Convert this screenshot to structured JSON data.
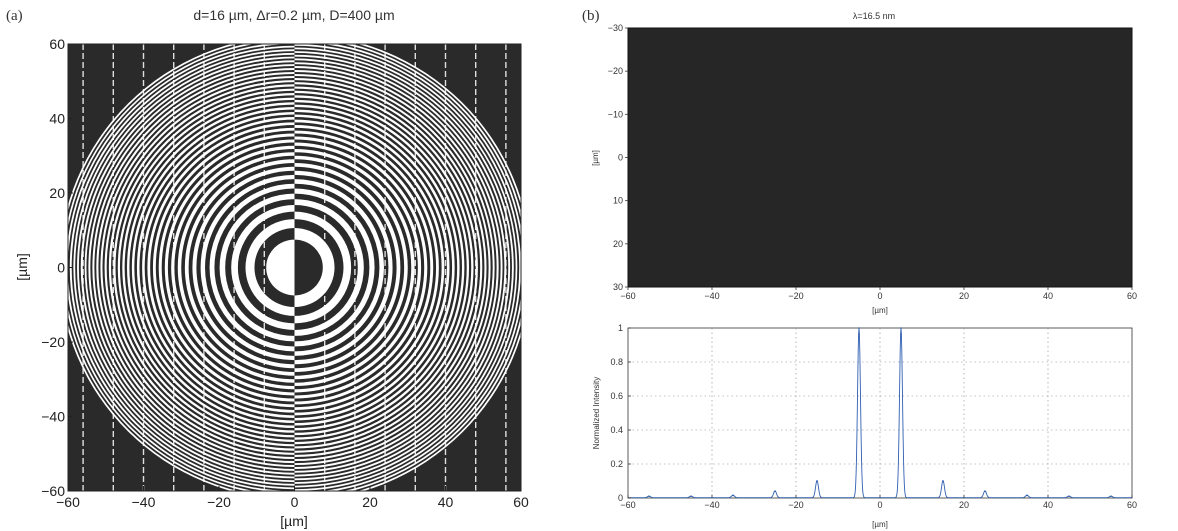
{
  "panel_a": {
    "letter": "(a)",
    "title": "d=16 µm, Δr=0.2 µm, D=400 µm",
    "xlabel": "[µm]",
    "ylabel": "[µm]"
  },
  "panel_b": {
    "letter": "(b)"
  },
  "chart_data": [
    {
      "type": "heatmap",
      "description_key": "panel-a-zone-plate-pattern",
      "title": "d=16 µm, Δr=0.2 µm, D=400 µm",
      "xlabel": "[µm]",
      "ylabel": "[µm]",
      "xlim": [
        -60,
        60
      ],
      "ylim": [
        60,
        -60
      ],
      "x_ticks": [
        -60,
        -40,
        -20,
        0,
        20,
        40,
        60
      ],
      "y_ticks": [
        -60,
        -40,
        -20,
        0,
        20,
        40,
        60
      ],
      "y_inverted": true,
      "grid": false,
      "colors": {
        "dark": "#2a2a2a",
        "light": "#ffffff"
      }
    },
    {
      "type": "heatmap",
      "title": "λ=16.5 nm",
      "xlabel": "[µm]",
      "ylabel": "[µm]",
      "xlim": [
        -60,
        60
      ],
      "ylim": [
        -30,
        30
      ],
      "x_ticks": [
        -60,
        -40,
        -20,
        0,
        20,
        40,
        60
      ],
      "y_ticks": [
        -30,
        -20,
        -10,
        0,
        10,
        20,
        30
      ],
      "y_inverted": true,
      "grid": false,
      "colors": {
        "field": "#262626"
      }
    },
    {
      "type": "line",
      "title": "",
      "xlabel": "[µm]",
      "ylabel": "Normalized Intensity",
      "xlim": [
        -60,
        60
      ],
      "ylim": [
        0,
        1
      ],
      "x_ticks": [
        -60,
        -40,
        -20,
        0,
        20,
        40,
        60
      ],
      "y_ticks": [
        0,
        0.2,
        0.4,
        0.6,
        0.8,
        1
      ],
      "grid": true,
      "line_color": "#2f5fb0",
      "peaks": [
        {
          "x": -55,
          "y": 0.01
        },
        {
          "x": -45,
          "y": 0.01
        },
        {
          "x": -35,
          "y": 0.015
        },
        {
          "x": -25,
          "y": 0.04
        },
        {
          "x": -15,
          "y": 0.1
        },
        {
          "x": -5,
          "y": 1.0
        },
        {
          "x": 5,
          "y": 1.0
        },
        {
          "x": 15,
          "y": 0.1
        },
        {
          "x": 25,
          "y": 0.04
        },
        {
          "x": 35,
          "y": 0.015
        },
        {
          "x": 45,
          "y": 0.01
        },
        {
          "x": 55,
          "y": 0.01
        }
      ]
    }
  ]
}
